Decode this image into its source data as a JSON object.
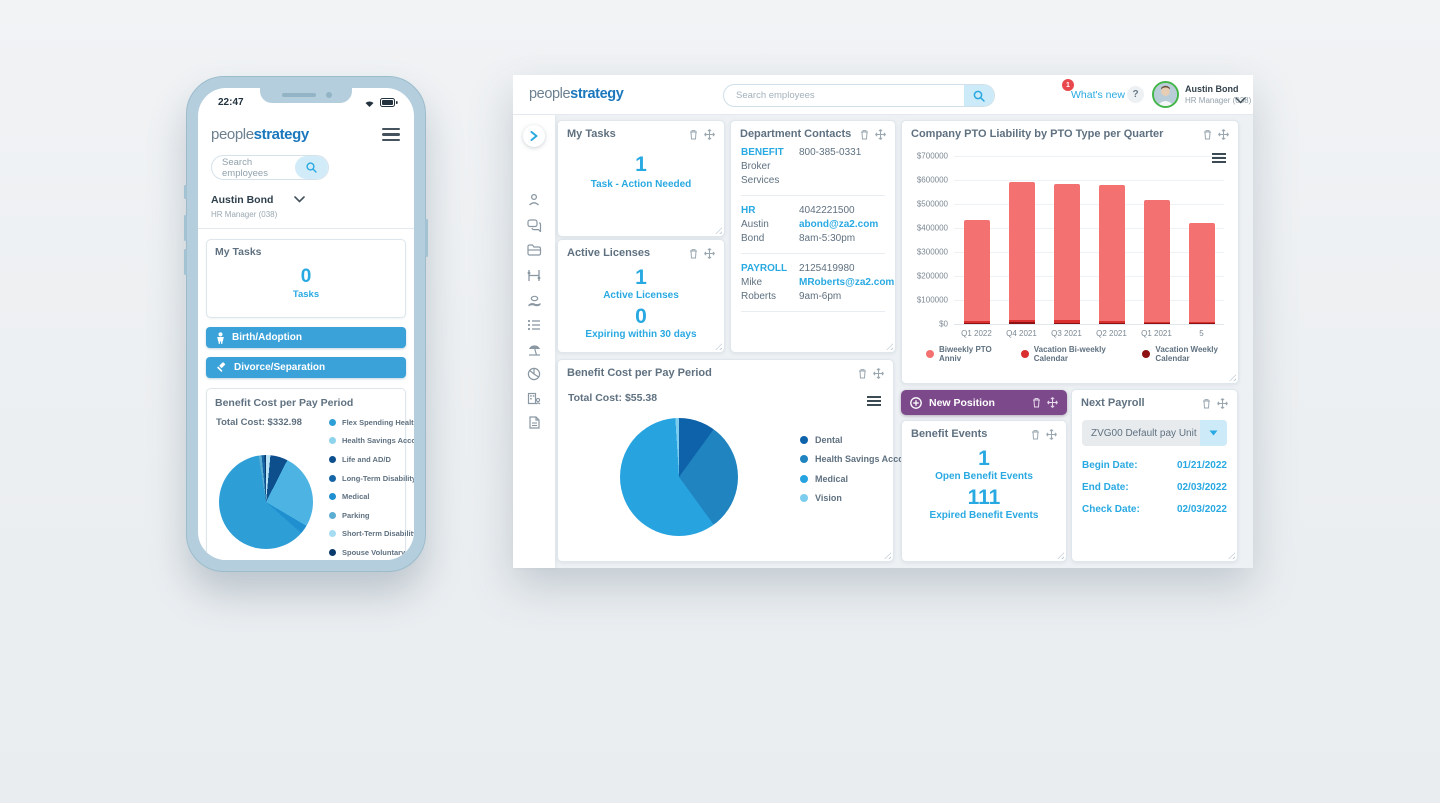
{
  "brand": {
    "logo_part1": "people",
    "logo_part2": "strategy"
  },
  "phone": {
    "status_time": "22:47",
    "search_placeholder": "Search employees",
    "user": {
      "name": "Austin Bond",
      "role": "HR Manager (038)"
    },
    "tasks_card": {
      "title": "My Tasks",
      "count": "0",
      "label": "Tasks"
    },
    "buttons": [
      {
        "label": "Birth/Adoption"
      },
      {
        "label": "Divorce/Separation"
      }
    ],
    "benefit_card": {
      "title": "Benefit Cost per Pay Period",
      "total": "Total Cost: $332.98",
      "legend": [
        {
          "label": "Flex Spending Health Care",
          "color": "#2d9fd6"
        },
        {
          "label": "Health Savings Account",
          "color": "#8ed3ec"
        },
        {
          "label": "Life and AD/D",
          "color": "#0d4e8c"
        },
        {
          "label": "Long-Term Disability",
          "color": "#1565a7"
        },
        {
          "label": "Medical",
          "color": "#1f8fd0"
        },
        {
          "label": "Parking",
          "color": "#5badd1"
        },
        {
          "label": "Short-Term Disability",
          "color": "#a5dcf2"
        },
        {
          "label": "Spouse Voluntary Life",
          "color": "#0a3a6b"
        }
      ]
    }
  },
  "desktop": {
    "header": {
      "search_placeholder": "Search employees",
      "whats_new": "What's new",
      "badge": "1",
      "help": "?",
      "user": {
        "name": "Austin Bond",
        "role": "HR Manager (038)"
      }
    },
    "cards": {
      "my_tasks": {
        "title": "My Tasks",
        "count": "1",
        "label": "Task - Action Needed"
      },
      "active_licenses": {
        "title": "Active Licenses",
        "count1": "1",
        "label1": "Active Licenses",
        "count2": "0",
        "label2": "Expiring within 30 days"
      },
      "contacts": {
        "title": "Department Contacts",
        "groups": [
          {
            "dept": "BENEFIT",
            "phone": "800-385-0331",
            "name1": "Broker",
            "email": "",
            "name2": "Services",
            "hours": ""
          },
          {
            "dept": "HR",
            "phone": "4042221500",
            "name1": "Austin",
            "email": "abond@za2.com",
            "name2": "Bond",
            "hours": "8am-5:30pm"
          },
          {
            "dept": "PAYROLL",
            "phone": "2125419980",
            "name1": "Mike",
            "email": "MRoberts@za2.com",
            "name2": "Roberts",
            "hours": "9am-6pm"
          }
        ]
      },
      "pto": {
        "title": "Company PTO Liability by PTO Type per Quarter"
      },
      "benefit_cost": {
        "title": "Benefit Cost per Pay Period",
        "total": "Total Cost: $55.38"
      },
      "new_position": {
        "label": "New Position"
      },
      "benefit_events": {
        "title": "Benefit Events",
        "count1": "1",
        "label1": "Open Benefit Events",
        "count2": "111",
        "label2": "Expired Benefit Events"
      },
      "next_payroll": {
        "title": "Next Payroll",
        "dropdown_value": "ZVG00 Default pay Unit",
        "rows": [
          {
            "label": "Begin Date:",
            "value": "01/21/2022"
          },
          {
            "label": "End Date:",
            "value": "02/03/2022"
          },
          {
            "label": "Check Date:",
            "value": "02/03/2022"
          }
        ]
      }
    }
  },
  "chart_data": [
    {
      "type": "bar",
      "title": "Company PTO Liability by PTO Type per Quarter",
      "categories": [
        "Q1 2022",
        "Q4 2021",
        "Q3 2021",
        "Q2 2021",
        "Q1 2021",
        "5"
      ],
      "series": [
        {
          "name": "Biweekly PTO Anniv",
          "color": "#f47171",
          "values": [
            420000,
            572000,
            570000,
            566000,
            509000,
            411000
          ]
        },
        {
          "name": "Vacation Bi-weekly Calendar",
          "color": "#da2f2f",
          "values": [
            7000,
            10000,
            9000,
            7000,
            5000,
            5000
          ]
        },
        {
          "name": "Vacation Weekly Calendar",
          "color": "#8e1212",
          "values": [
            5000,
            8000,
            6000,
            5000,
            4000,
            4000
          ]
        }
      ],
      "stacked": true,
      "ylim": [
        0,
        700000
      ],
      "yticks": [
        "$0",
        "$100000",
        "$200000",
        "$300000",
        "$400000",
        "$500000",
        "$600000",
        "$700000"
      ],
      "legend_position": "bottom",
      "grid": true
    },
    {
      "type": "pie",
      "title": "Benefit Cost per Pay Period (desktop)",
      "total": "Total Cost: $55.38",
      "slices": [
        {
          "label": "Dental",
          "value": 10,
          "color": "#0e62a9"
        },
        {
          "label": "Health Savings Account",
          "value": 30,
          "color": "#1f84bf"
        },
        {
          "label": "Medical",
          "value": 59,
          "color": "#27a3e0"
        },
        {
          "label": "Vision",
          "value": 1,
          "color": "#7ccdee"
        }
      ],
      "legend": [
        {
          "label": "Dental",
          "color": "#0e62a9"
        },
        {
          "label": "Health Savings Account",
          "color": "#1f84bf"
        },
        {
          "label": "Medical",
          "color": "#27a3e0"
        },
        {
          "label": "Vision",
          "color": "#7ccdee"
        }
      ]
    },
    {
      "type": "pie",
      "title": "Benefit Cost per Pay Period (phone)",
      "total": "Total Cost: $332.98",
      "slices": [
        {
          "label": "Short-Term Disability",
          "value": 1.5,
          "color": "#b8e4f5"
        },
        {
          "label": "Life and AD/D",
          "value": 6,
          "color": "#0d4e8c"
        },
        {
          "label": "Health Savings Account",
          "value": 26,
          "color": "#4cb3e2"
        },
        {
          "label": "Medical",
          "value": 3,
          "color": "#1f8fd0"
        },
        {
          "label": "Flex Spending Health Care",
          "value": 61,
          "color": "#2d9fd6"
        },
        {
          "label": "Parking",
          "value": 1,
          "color": "#5badd1"
        },
        {
          "label": "Long-Term Disability",
          "value": 1,
          "color": "#1565a7"
        },
        {
          "label": "Spouse Voluntary Life",
          "value": 0.5,
          "color": "#0a3a6b"
        }
      ]
    }
  ]
}
